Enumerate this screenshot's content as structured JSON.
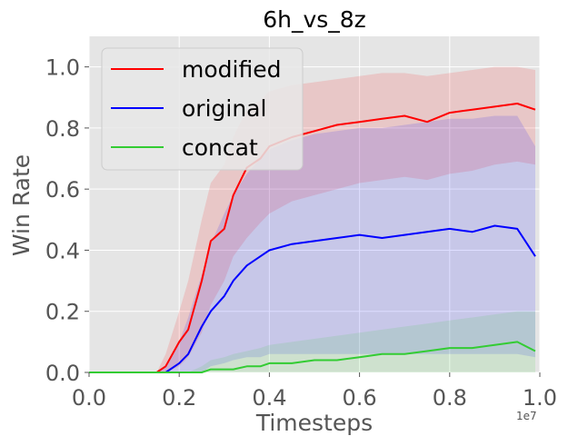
{
  "chart_data": {
    "type": "line",
    "title": "6h_vs_8z",
    "xlabel": "Timesteps",
    "ylabel": "Win Rate",
    "x_scale_note": "1e7",
    "xlim": [
      0,
      1.0
    ],
    "ylim": [
      0,
      1.1
    ],
    "xticks": [
      "0.0",
      "0.2",
      "0.4",
      "0.6",
      "0.8",
      "1.0"
    ],
    "yticks": [
      "0.0",
      "0.2",
      "0.4",
      "0.6",
      "0.8",
      "1.0"
    ],
    "grid": true,
    "legend_position": "top-left",
    "x": [
      0.0,
      0.05,
      0.1,
      0.15,
      0.17,
      0.2,
      0.22,
      0.25,
      0.27,
      0.3,
      0.32,
      0.35,
      0.38,
      0.4,
      0.45,
      0.5,
      0.55,
      0.6,
      0.65,
      0.7,
      0.75,
      0.8,
      0.85,
      0.9,
      0.95,
      0.99
    ],
    "series": [
      {
        "name": "modified",
        "color": "#ff0000",
        "values": [
          0.0,
          0.0,
          0.0,
          0.0,
          0.02,
          0.1,
          0.14,
          0.3,
          0.43,
          0.47,
          0.58,
          0.67,
          0.7,
          0.74,
          0.77,
          0.79,
          0.81,
          0.82,
          0.83,
          0.84,
          0.82,
          0.85,
          0.86,
          0.87,
          0.88,
          0.86
        ],
        "band_low": [
          0.0,
          0.0,
          0.0,
          0.0,
          0.0,
          0.02,
          0.05,
          0.13,
          0.22,
          0.3,
          0.38,
          0.44,
          0.49,
          0.52,
          0.56,
          0.58,
          0.6,
          0.62,
          0.63,
          0.64,
          0.63,
          0.65,
          0.66,
          0.68,
          0.69,
          0.68
        ],
        "band_high": [
          0.0,
          0.0,
          0.0,
          0.0,
          0.06,
          0.2,
          0.3,
          0.5,
          0.62,
          0.68,
          0.77,
          0.86,
          0.89,
          0.92,
          0.94,
          0.95,
          0.96,
          0.97,
          0.98,
          0.98,
          0.97,
          0.98,
          0.99,
          1.0,
          1.0,
          0.99
        ]
      },
      {
        "name": "original",
        "color": "#0000ff",
        "values": [
          0.0,
          0.0,
          0.0,
          0.0,
          0.0,
          0.03,
          0.06,
          0.15,
          0.2,
          0.25,
          0.3,
          0.35,
          0.38,
          0.4,
          0.42,
          0.43,
          0.44,
          0.45,
          0.44,
          0.45,
          0.46,
          0.47,
          0.46,
          0.48,
          0.47,
          0.38
        ],
        "band_low": [
          0.0,
          0.0,
          0.0,
          0.0,
          0.0,
          0.0,
          0.0,
          0.0,
          0.02,
          0.03,
          0.04,
          0.05,
          0.05,
          0.06,
          0.06,
          0.06,
          0.06,
          0.06,
          0.06,
          0.06,
          0.06,
          0.06,
          0.06,
          0.06,
          0.06,
          0.05
        ],
        "band_high": [
          0.0,
          0.0,
          0.0,
          0.0,
          0.02,
          0.1,
          0.18,
          0.32,
          0.42,
          0.52,
          0.58,
          0.65,
          0.7,
          0.73,
          0.76,
          0.78,
          0.79,
          0.8,
          0.8,
          0.81,
          0.82,
          0.83,
          0.83,
          0.84,
          0.84,
          0.74
        ]
      },
      {
        "name": "concat",
        "color": "#33cc33",
        "values": [
          0.0,
          0.0,
          0.0,
          0.0,
          0.0,
          0.0,
          0.0,
          0.0,
          0.01,
          0.01,
          0.01,
          0.02,
          0.02,
          0.03,
          0.03,
          0.04,
          0.04,
          0.05,
          0.06,
          0.06,
          0.07,
          0.08,
          0.08,
          0.09,
          0.1,
          0.07
        ],
        "band_low": [
          0.0,
          0.0,
          0.0,
          0.0,
          0.0,
          0.0,
          0.0,
          0.0,
          0.0,
          0.0,
          0.0,
          0.0,
          0.0,
          0.0,
          0.0,
          0.0,
          0.0,
          0.0,
          0.0,
          0.0,
          0.0,
          0.0,
          0.0,
          0.0,
          0.0,
          0.0
        ],
        "band_high": [
          0.0,
          0.0,
          0.0,
          0.0,
          0.0,
          0.0,
          0.0,
          0.02,
          0.04,
          0.05,
          0.06,
          0.07,
          0.08,
          0.09,
          0.1,
          0.11,
          0.12,
          0.13,
          0.14,
          0.15,
          0.16,
          0.17,
          0.18,
          0.19,
          0.2,
          0.2
        ]
      }
    ]
  },
  "style": {
    "plot_bg": "#e5e5e5",
    "grid_color": "#ffffff"
  }
}
